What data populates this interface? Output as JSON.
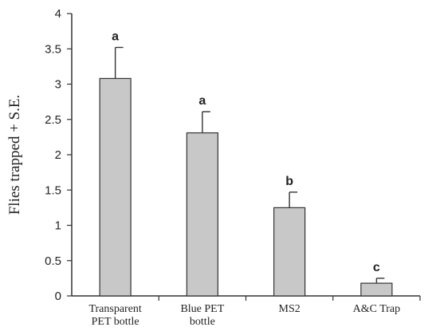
{
  "chart_data": {
    "type": "bar",
    "categories": [
      [
        "Transparent",
        "PET bottle"
      ],
      [
        "Blue PET",
        "bottle"
      ],
      [
        "MS2"
      ],
      [
        "A&C Trap"
      ]
    ],
    "values": [
      3.08,
      2.31,
      1.25,
      0.18
    ],
    "errors": [
      0.44,
      0.3,
      0.22,
      0.07
    ],
    "significance": [
      "a",
      "a",
      "b",
      "c"
    ],
    "ylabel": "Flies trapped + S.E.",
    "xlabel": "",
    "ylim": [
      0,
      4
    ],
    "yticks": [
      "0",
      "0.5",
      "1",
      "1.5",
      "2",
      "2.5",
      "3",
      "3.5",
      "4"
    ],
    "grid": false,
    "bar_color": "#c8c8c8",
    "bar_edge_color": "#333333"
  }
}
